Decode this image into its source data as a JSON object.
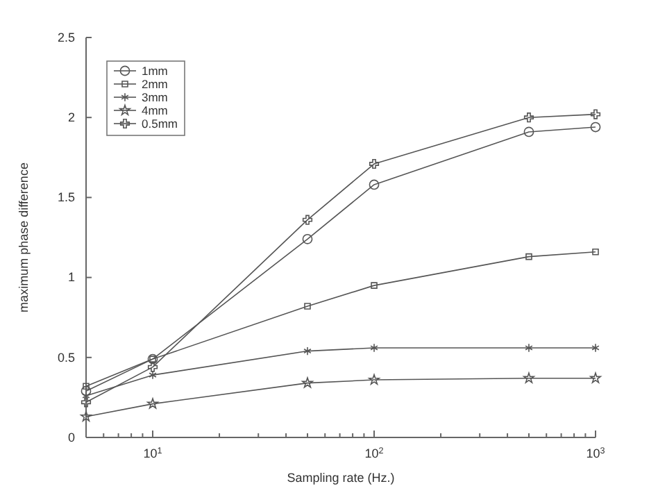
{
  "chart_data": {
    "type": "line",
    "xlabel": "Sampling rate (Hz.)",
    "ylabel": "maximum phase difference",
    "log": "x",
    "x": [
      5,
      10,
      50,
      100,
      500,
      1000
    ],
    "xlim": [
      5,
      1000
    ],
    "xticks": [
      {
        "value": 5,
        "label": null
      },
      {
        "value": 6,
        "label": null
      },
      {
        "value": 7,
        "label": null
      },
      {
        "value": 8,
        "label": null
      },
      {
        "value": 9,
        "label": null
      },
      {
        "value": 10,
        "label": "10$^{1}$"
      },
      {
        "value": 20,
        "label": null
      },
      {
        "value": 30,
        "label": null
      },
      {
        "value": 40,
        "label": null
      },
      {
        "value": 50,
        "label": null
      },
      {
        "value": 60,
        "label": null
      },
      {
        "value": 70,
        "label": null
      },
      {
        "value": 80,
        "label": null
      },
      {
        "value": 90,
        "label": null
      },
      {
        "value": 100,
        "label": "10$^{2}$"
      },
      {
        "value": 200,
        "label": null
      },
      {
        "value": 300,
        "label": null
      },
      {
        "value": 400,
        "label": null
      },
      {
        "value": 500,
        "label": null
      },
      {
        "value": 600,
        "label": null
      },
      {
        "value": 700,
        "label": null
      },
      {
        "value": 800,
        "label": null
      },
      {
        "value": 900,
        "label": null
      },
      {
        "value": 1000,
        "label": "10$^{3}$"
      }
    ],
    "ylim": [
      0,
      2.5
    ],
    "yticks": [
      0,
      0.5,
      1,
      1.5,
      2,
      2.5
    ],
    "legend": "top left",
    "grid": false,
    "series": [
      {
        "name": "1mm",
        "color": "#555555",
        "marker": "circle",
        "values": [
          0.29,
          0.49,
          1.24,
          1.58,
          1.91,
          1.94
        ]
      },
      {
        "name": "2mm",
        "color": "#555555",
        "marker": "square",
        "values": [
          0.32,
          0.49,
          0.82,
          0.95,
          1.13,
          1.16
        ]
      },
      {
        "name": "3mm",
        "color": "#555555",
        "marker": "cross",
        "values": [
          0.26,
          0.39,
          0.54,
          0.56,
          0.56,
          0.56
        ]
      },
      {
        "name": "4mm",
        "color": "#555555",
        "marker": "star",
        "values": [
          0.13,
          0.21,
          0.34,
          0.36,
          0.37,
          0.37
        ]
      },
      {
        "name": "0.5mm",
        "color": "#555555",
        "marker": "plus",
        "values": [
          0.22,
          0.44,
          1.36,
          1.71,
          2.0,
          2.02
        ]
      }
    ]
  }
}
